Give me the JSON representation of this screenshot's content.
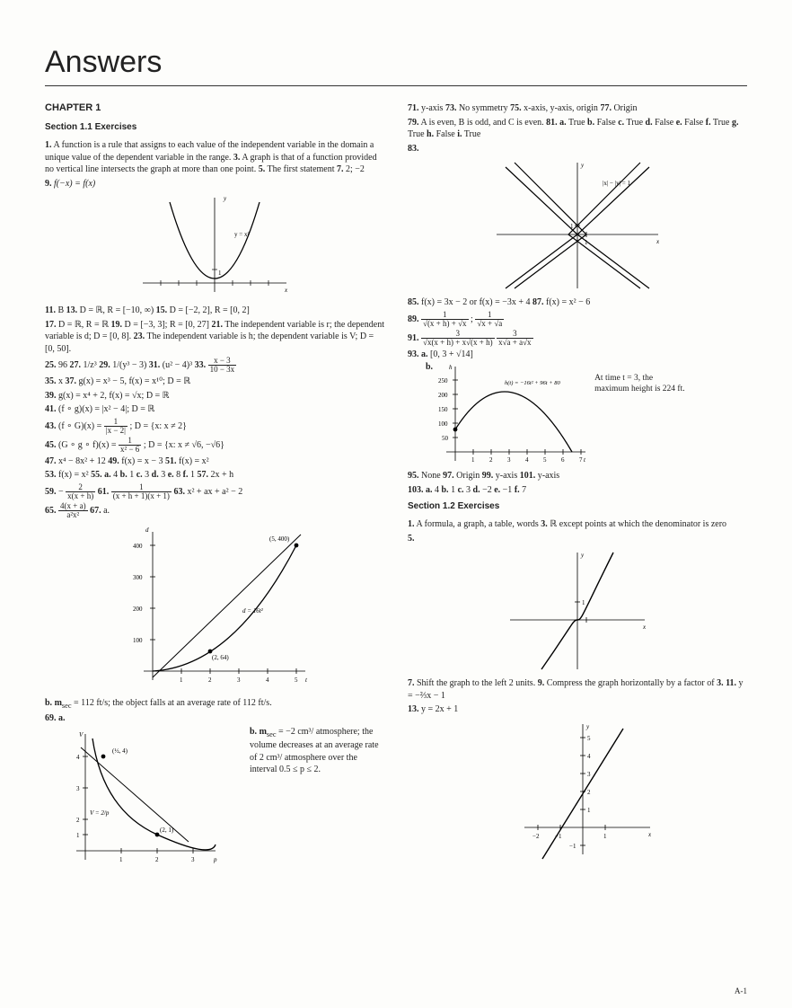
{
  "title": "Answers",
  "chapter": "CHAPTER 1",
  "section11": "Section 1.1 Exercises",
  "section12": "Section 1.2 Exercises",
  "pageNum": "A-1",
  "left": {
    "p1a": "1.",
    "p1b": "  A function is a rule that assigns to each value of the independent variable in the domain a unique value of the dependent variable in the range.   ",
    "p1c": "3.",
    "p1d": "  A graph is that of a function provided no vertical line intersects the graph at more than one point.   ",
    "p1e": "5.",
    "p1f": "  The first statement   ",
    "p1g": "7.",
    "p1h": "  2; −2",
    "p2a": "9.",
    "p2b": "  f(−x) = f(x)",
    "g1_label": "y = x²",
    "p3": "11.  B   13.  D = ℝ, R = [−10, ∞)   15.  D = [−2, 2], R = [0, 2]",
    "p4": "17.  D = ℝ, R = ℝ   19.  D = [−3, 3]; R = [0, 27]   21.  The independent variable is r; the dependent variable is d; D = [0, 8].   23.  The independent variable is h; the dependent variable is V; D = [0, 50].",
    "p5a": "25.  96   27.  1/z³   29.  1/(y³ − 3)   31.  (u² − 4)³   33.  ",
    "p5_ft": "x − 3",
    "p5_fb": "10 − 3x",
    "p6": "35.  x   37.  g(x) = x³ − 5, f(x) = x¹⁰; D = ℝ",
    "p7": "39.  g(x) = x⁴ + 2, f(x) = √x; D = ℝ",
    "p8": "41.  (f ∘ g)(x) = |x² − 4|; D = ℝ",
    "p9a": "43.  (f ∘ G)(x) = ",
    "p9_ft": "1",
    "p9_fb": "|x − 2|",
    "p9b": "; D = {x: x ≠ 2}",
    "p10a": "45.  (G ∘ g ∘ f)(x) = ",
    "p10_ft": "1",
    "p10_fb": "x² − 6",
    "p10b": "; D = {x: x ≠ √6, −√6}",
    "p11": "47.  x⁴ − 8x² + 12   49.  f(x) = x − 3   51.  f(x) = x²",
    "p12": "53.  f(x) = x²   55. a.  4   b.  1   c.  3   d.  3   e.  8   f.  1   57.  2x + h",
    "p13a": "59.  −",
    "p13_ft": "2",
    "p13_fb": "x(x + h)",
    "p13b": "   61.  ",
    "p13_ft2": "1",
    "p13_fb2": "(x + h + 1)(x + 1)",
    "p13c": "   63.  x² + ax + a² − 2",
    "p14a": "65.  ",
    "p14_ft": "4(x + a)",
    "p14_fb": "a²x²",
    "p14b": "   67. a.",
    "g2_pt1": "(5, 400)",
    "g2_pt2": "(2, 64)",
    "g2_lbl": "d = 16t²",
    "p15a": "b.  m",
    "p15b": " = 112 ft/s; the object falls at an average rate of 112 ft/s.",
    "p16": "69. a.",
    "g3_ptA": "(½, 4)",
    "g3_ptB": "(2, 1)",
    "g3_lbl": "V = 2/p",
    "p17a": "b.  m",
    "p17b": " = −2 cm³/ atmosphere; the volume decreases at an average rate of 2 cm³/ atmosphere over the interval 0.5 ≤ p ≤ 2."
  },
  "right": {
    "p1": "71.  y-axis   73.  No symmetry   75.  x-axis, y-axis, origin   77.  Origin",
    "p2": "79.  A is even, B is odd, and C is even.   81. a.  True   b.  False   c.  True   d.  False   e.  False   f.  True   g.  True   h.  False   i.  True",
    "p3": "83.",
    "g4_lbl": "|x| − |y| = 1",
    "p4": "85.  f(x) = 3x − 2 or f(x) = −3x + 4   87.  f(x) = x² − 6",
    "p5a": "89.  ",
    "p5_ft": "1",
    "p5_fb": "√(x + h) + √x",
    "p5b": "; ",
    "p5_ft2": "1",
    "p5_fb2": "√x + √a",
    "p6a": "91.  ",
    "p6_ft": "3",
    "p6_fb": "√x(x + h) + x√(x + h)",
    "p6b": " ",
    "p6_ft2": "3",
    "p6_fb2": "x√a + a√x",
    "p7": "93. a.  [0, 3 + √14]",
    "p7b": "      b.",
    "g5_lbl": "h(t) = −16t² + 96t + 80",
    "note1": "At time t = 3, the",
    "note2": "maximum height is 224 ft.",
    "p8": "95.  None   97.  Origin   99.  y-axis   101.  y-axis",
    "p9": "103. a.  4   b.  1   c.  3   d.  −2   e.  −1   f.  7",
    "p10": "1.  A formula, a graph, a table, words   3.  ℝ except points at which the denominator is zero",
    "p11": "5.",
    "p12": "7.  Shift the graph to the left 2 units.   9.  Compress the graph horizontally by a factor of 3.   11.  y = −⅔x − 1",
    "p13": "13.  y = 2x + 1"
  },
  "charts": {
    "parabola": {
      "xlim": [
        -4,
        4
      ],
      "ylim": [
        0,
        7
      ],
      "color": "#000"
    },
    "star": {
      "size": 170,
      "color": "#000"
    },
    "traj": {
      "xlim": [
        0,
        7
      ],
      "ylim": [
        0,
        250
      ],
      "color": "#000"
    },
    "cubic": {
      "xlim": [
        -2.5,
        2.5
      ],
      "ylim": [
        -2,
        2
      ]
    },
    "line": {
      "xlim": [
        -3,
        3
      ],
      "ylim": [
        -2,
        5
      ]
    }
  }
}
